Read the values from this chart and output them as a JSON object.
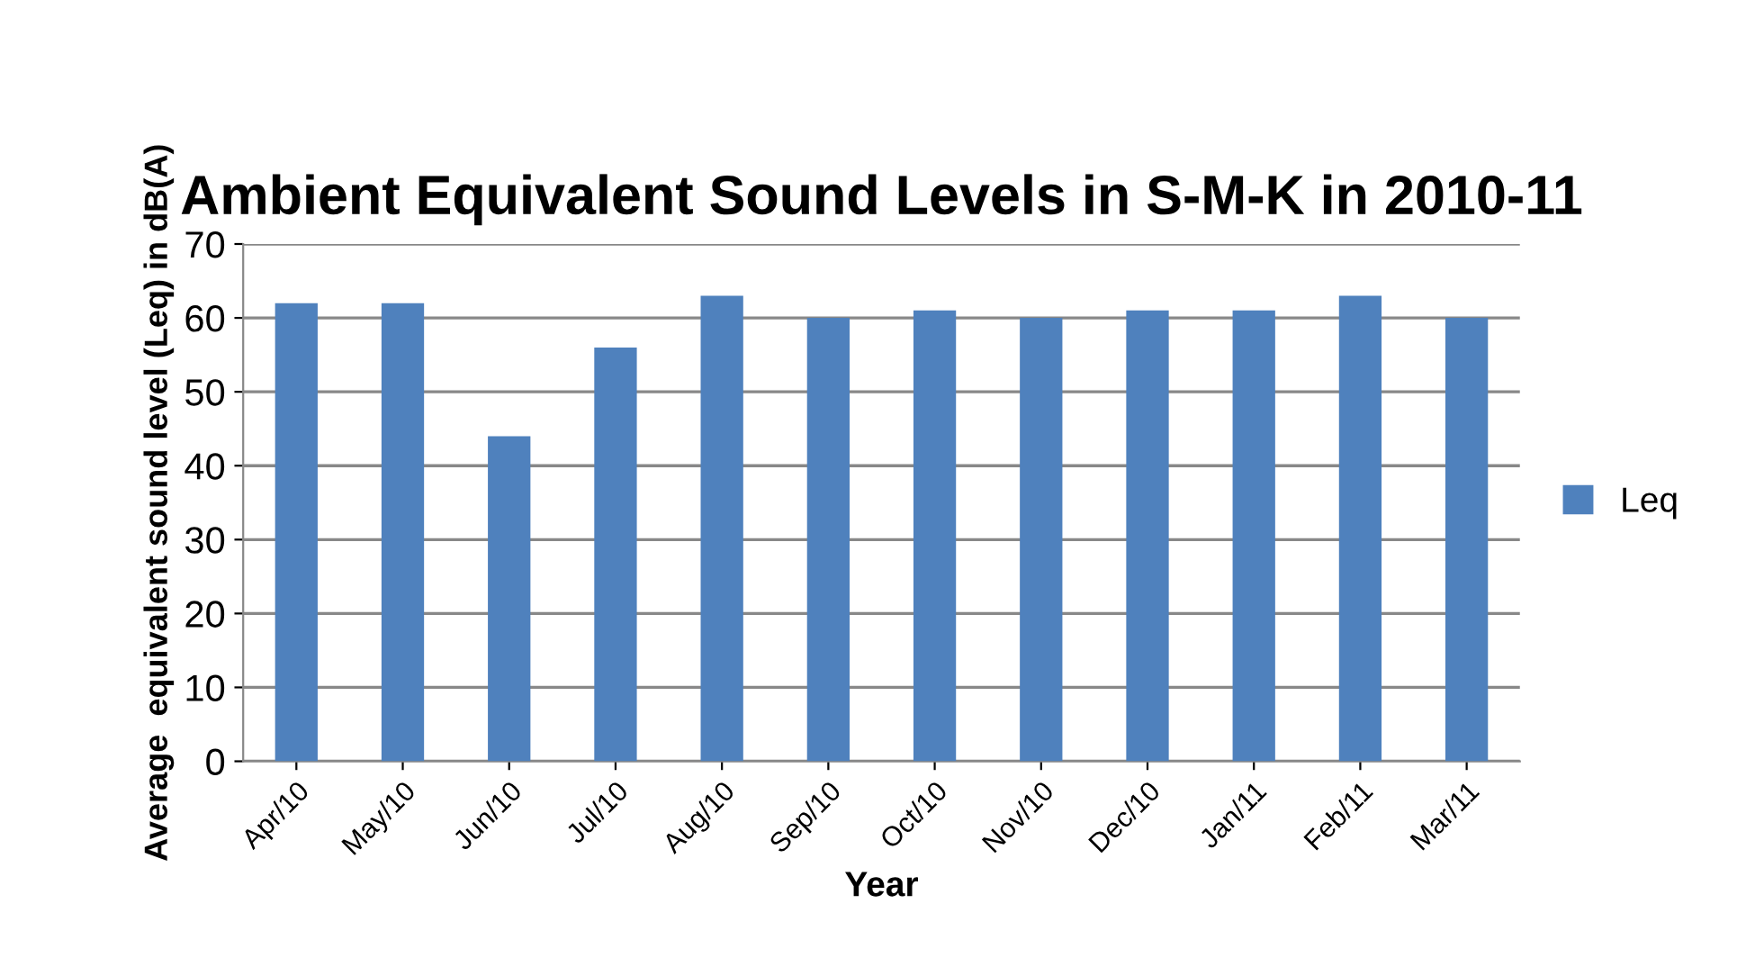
{
  "chart_data": {
    "type": "bar",
    "title": "Ambient Equivalent Sound Levels in S-M-K in 2010-11",
    "xlabel": "Year",
    "ylabel": "Average  equivalent sound level (Leq) in dB(A)",
    "categories": [
      "Apr/10",
      "May/10",
      "Jun/10",
      "Jul/10",
      "Aug/10",
      "Sep/10",
      "Oct/10",
      "Nov/10",
      "Dec/10",
      "Jan/11",
      "Feb/11",
      "Mar/11"
    ],
    "series": [
      {
        "name": "Leq",
        "color": "#4f81bd",
        "values": [
          62,
          62,
          44,
          56,
          63,
          60,
          61,
          60,
          61,
          61,
          63,
          60
        ]
      }
    ],
    "ylim": [
      0,
      70
    ],
    "yticks": [
      0,
      10,
      20,
      30,
      40,
      50,
      60,
      70
    ],
    "grid": "y",
    "legend": "right"
  }
}
